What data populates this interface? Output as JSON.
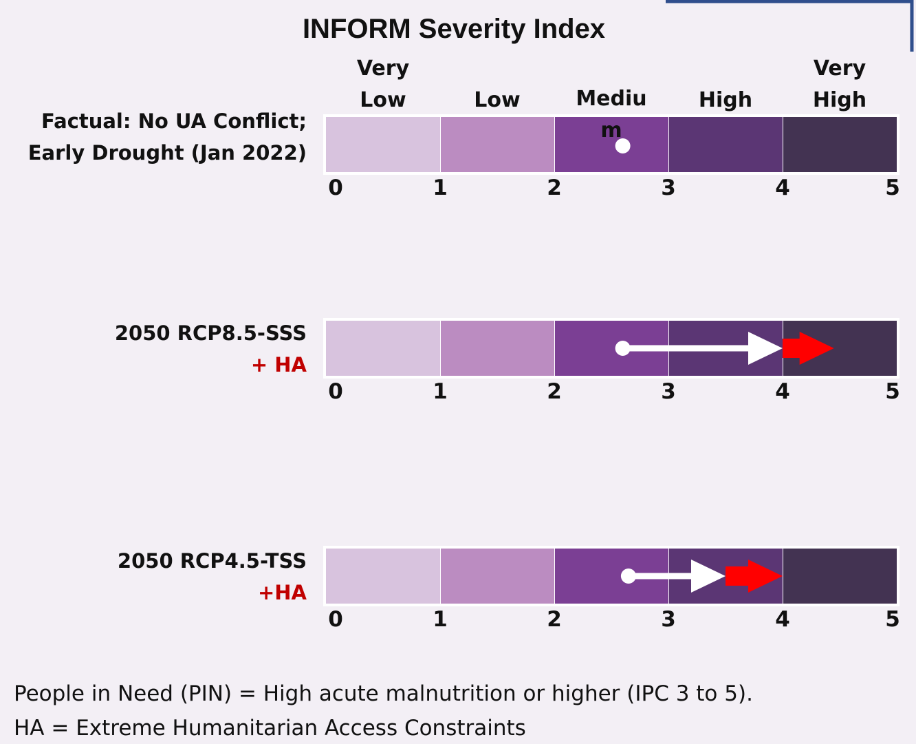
{
  "title": "INFORM Severity Index",
  "categories": [
    "Very Low",
    "Low",
    "Medium",
    "High",
    "Very High"
  ],
  "colors": [
    "#d8c3de",
    "#bb8cc1",
    "#7b3f94",
    "#5b3674",
    "#433352"
  ],
  "xlim": [
    0,
    5
  ],
  "xticks": [
    0,
    1,
    2,
    3,
    4,
    5
  ],
  "rows": [
    {
      "label": [
        "Factual: No UA Conflict;",
        "Early Drought (Jan 2022)"
      ],
      "start": 2.6
    },
    {
      "label": [
        "2050 RCP8.5-SSS",
        "+ HA"
      ],
      "start": 2.6,
      "arrow_end": 4.0,
      "ha_end": 4.45
    },
    {
      "label": [
        "2050 RCP4.5-TSS",
        "+HA"
      ],
      "start": 2.65,
      "arrow_end": 3.5,
      "ha_end": 4.0
    }
  ],
  "footnotes": [
    "People in Need (PIN) = High acute malnutrition or higher (IPC 3 to 5).",
    "HA = Extreme Humanitarian Access Constraints"
  ]
}
